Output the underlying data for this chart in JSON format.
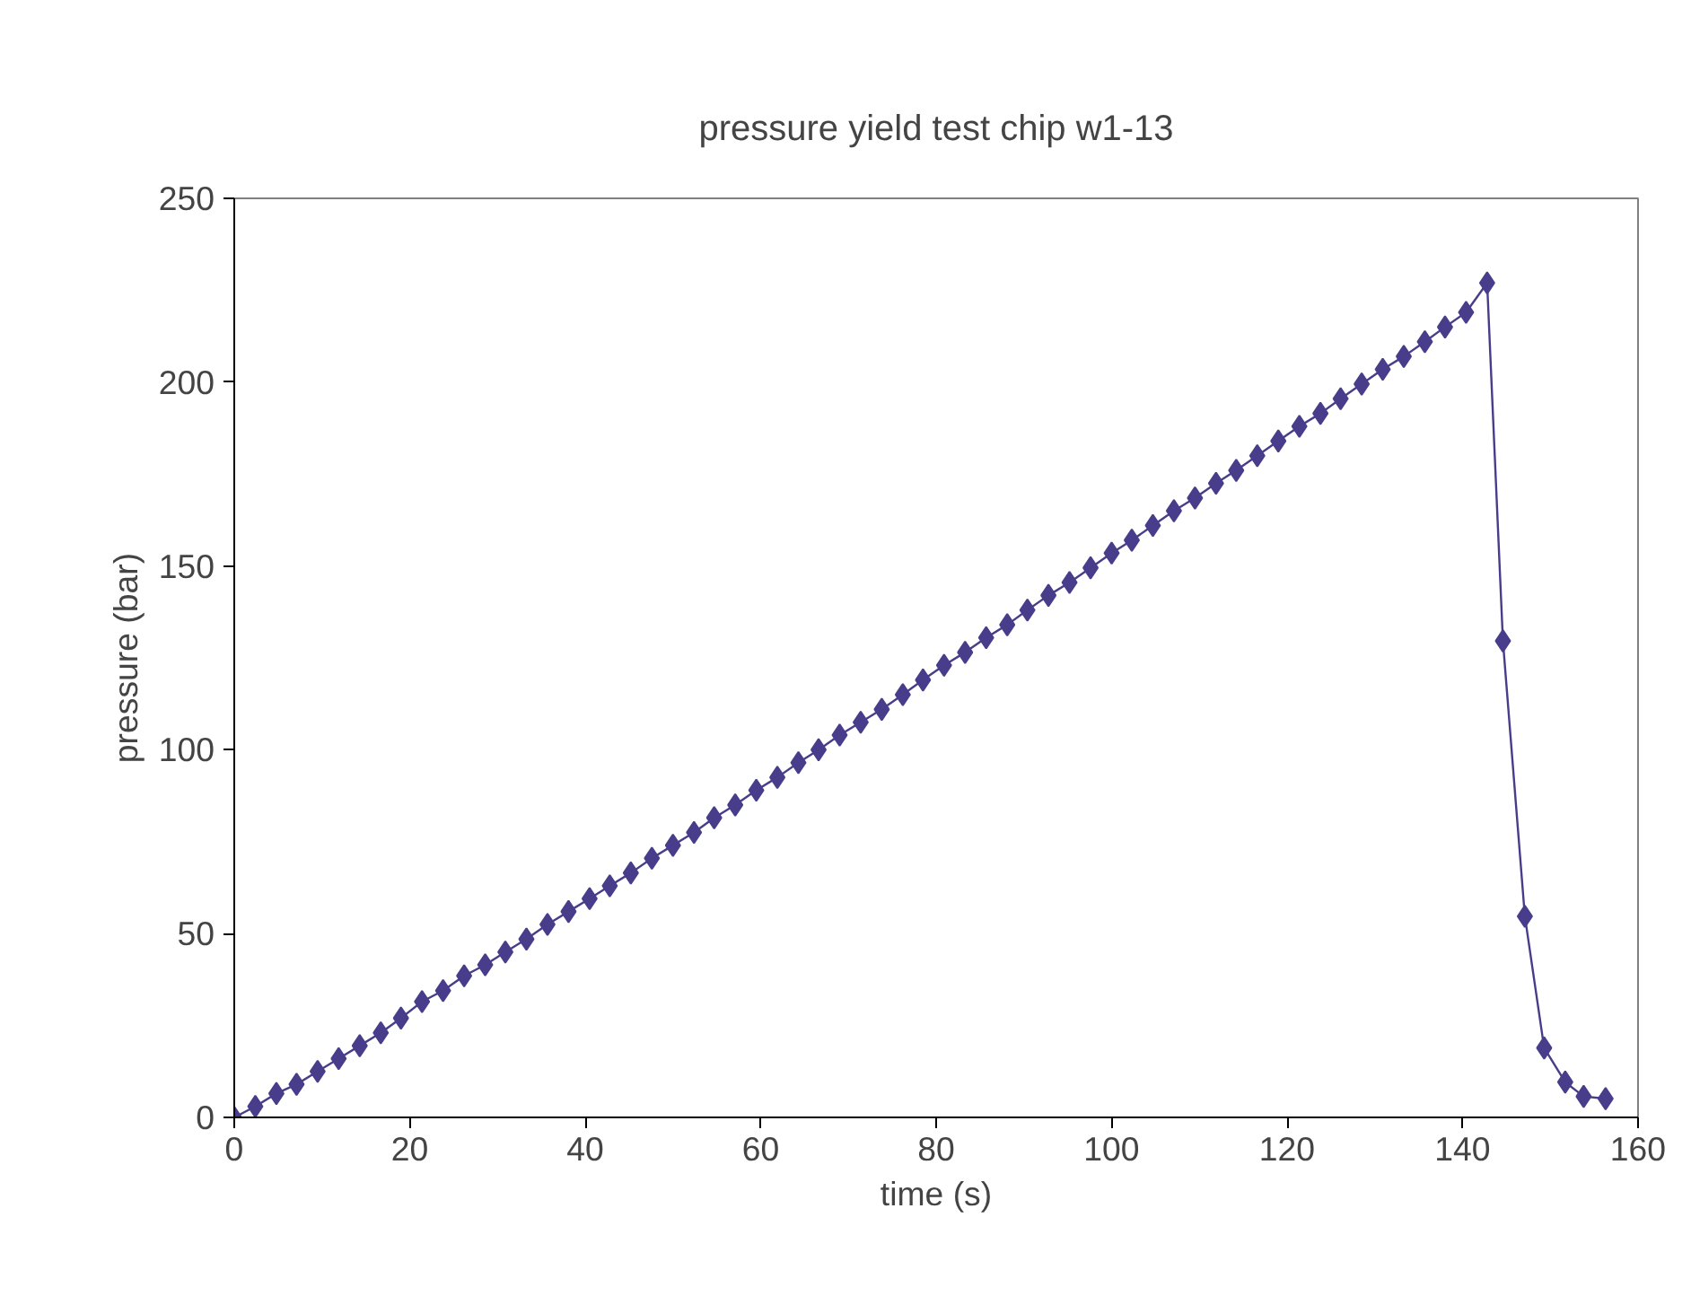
{
  "chart_data": {
    "type": "line",
    "title": "pressure yield test chip w1-13",
    "xlabel": "time (s)",
    "ylabel": "pressure (bar)",
    "xlim": [
      0,
      160
    ],
    "xticks": [
      0,
      20,
      40,
      60,
      80,
      100,
      120,
      140,
      160
    ],
    "ylim": [
      0,
      250
    ],
    "yticks": [
      0,
      50,
      100,
      150,
      200,
      250
    ],
    "grid": false,
    "marker": "diamond",
    "line_style": "solid",
    "x": [
      0,
      2.4,
      4.8,
      7.1,
      9.5,
      11.9,
      14.3,
      16.7,
      19,
      21.4,
      23.8,
      26.2,
      28.6,
      30.9,
      33.3,
      35.7,
      38.1,
      40.5,
      42.8,
      45.2,
      47.6,
      50,
      52.4,
      54.7,
      57.1,
      59.5,
      61.9,
      64.3,
      66.6,
      69,
      71.4,
      73.8,
      76.2,
      78.5,
      80.9,
      83.3,
      85.7,
      88.1,
      90.4,
      92.8,
      95.2,
      97.6,
      100,
      102.3,
      104.7,
      107.1,
      109.5,
      111.9,
      114.2,
      116.6,
      119,
      121.4,
      123.8,
      126.1,
      128.5,
      130.9,
      133.3,
      135.7,
      138,
      140.4,
      142.8,
      144.6,
      147.1,
      149.3,
      151.7,
      153.8,
      156.3
    ],
    "series": [
      {
        "color": "#483d8b",
        "values": [
          0,
          3,
          6.5,
          9,
          12.5,
          16,
          19.5,
          23,
          27,
          31.5,
          34.5,
          38.5,
          41.5,
          45,
          48.5,
          52.5,
          56,
          59.5,
          63,
          66.5,
          70.5,
          74,
          77.5,
          81.5,
          85,
          89,
          92.5,
          96.5,
          100,
          104,
          107.5,
          111,
          115,
          119,
          123,
          126.5,
          130.5,
          134,
          138,
          142,
          145.5,
          149.5,
          153.5,
          157,
          161,
          165,
          168.5,
          172.5,
          176,
          180,
          184,
          188,
          191.5,
          195.5,
          199.5,
          203.5,
          207,
          211,
          215,
          219,
          227,
          129.6,
          54.7,
          18.9,
          9.6,
          5.7,
          5.1
        ]
      }
    ]
  }
}
